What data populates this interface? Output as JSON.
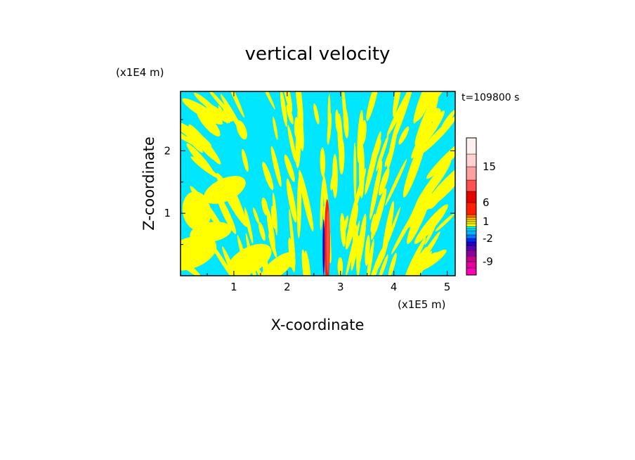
{
  "chart_data": {
    "type": "heatmap",
    "title": "vertical velocity",
    "xlabel": "X-coordinate",
    "ylabel": "Z-coordinate",
    "x_unit": "(x1E5 m)",
    "y_unit": "(x1E4 m)",
    "time_label": "t=109800 s",
    "xlim": [
      0,
      5.15
    ],
    "ylim": [
      0,
      2.95
    ],
    "x_ticks": [
      1,
      2,
      3,
      4,
      5
    ],
    "y_ticks": [
      1,
      2
    ],
    "colorbar": {
      "levels": [
        -12,
        -10.5,
        -9,
        -7.5,
        -6,
        -4,
        -3,
        -2,
        -1.5,
        -1,
        -0.5,
        0,
        0.5,
        1,
        1.5,
        2,
        4,
        6,
        8,
        11,
        15,
        18,
        22
      ],
      "colors": [
        "#ff00b4",
        "#e600a0",
        "#c8008c",
        "#8c00a0",
        "#5a00b4",
        "#1e00c8",
        "#0028ff",
        "#0078ff",
        "#00b4ff",
        "#00e6ff",
        "#00ffff",
        "#ffff00",
        "#fff000",
        "#ffdc00",
        "#ffc800",
        "#ff6400",
        "#ff1e00",
        "#e60000",
        "#ff5050",
        "#ffa0a0",
        "#ffd2d2",
        "#fff0f0"
      ],
      "tick_labels": [
        "15",
        "6",
        "1",
        "-2",
        "-9"
      ],
      "tick_values": [
        15,
        6,
        1,
        -2,
        -9
      ]
    },
    "field_description_colors": {
      "dominant_positive": "#ffff00",
      "dominant_negative": "#00e6ff"
    }
  }
}
